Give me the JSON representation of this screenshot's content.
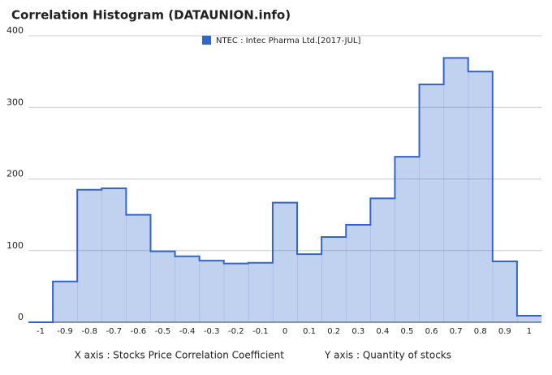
{
  "chart_data": {
    "type": "step-area",
    "title": "Correlation Histogram (DATAUNION.info)",
    "categories": [
      "-1",
      "-0.9",
      "-0.8",
      "-0.7",
      "-0.6",
      "-0.5",
      "-0.4",
      "-0.3",
      "-0.2",
      "-0.1",
      "0",
      "0.1",
      "0.2",
      "0.3",
      "0.4",
      "0.5",
      "0.6",
      "0.7",
      "0.8",
      "0.9",
      "1"
    ],
    "series": [
      {
        "name": "NTEC : Intec Pharma Ltd.[2017-JUL]",
        "color": "#3366cc",
        "values": [
          0,
          57,
          185,
          187,
          150,
          99,
          92,
          86,
          82,
          83,
          167,
          95,
          119,
          136,
          173,
          231,
          332,
          369,
          350,
          85,
          9
        ]
      }
    ],
    "ylim": [
      0,
      400
    ],
    "yticks": [
      0,
      100,
      200,
      300,
      400
    ],
    "grid": true,
    "xlabel": "X axis : Stocks Price Correlation Coefficient",
    "ylabel": "Y axis : Quantity of stocks"
  }
}
